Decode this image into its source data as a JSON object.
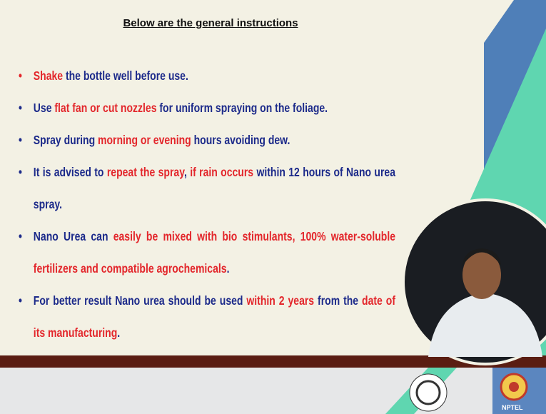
{
  "title": "Below are the general instructions",
  "bullets": [
    {
      "segments": [
        {
          "text": "Shake",
          "emphasis": true
        },
        {
          "text": " the bottle well before use.",
          "emphasis": false
        }
      ]
    },
    {
      "segments": [
        {
          "text": "Use ",
          "emphasis": false
        },
        {
          "text": "flat fan or cut nozzles",
          "emphasis": true
        },
        {
          "text": " for uniform spraying on the foliage.",
          "emphasis": false
        }
      ]
    },
    {
      "segments": [
        {
          "text": "Spray during ",
          "emphasis": false
        },
        {
          "text": "morning or evening",
          "emphasis": true
        },
        {
          "text": " hours avoiding dew.",
          "emphasis": false
        }
      ]
    },
    {
      "segments": [
        {
          "text": "It is advised to ",
          "emphasis": false
        },
        {
          "text": "repeat the spray",
          "emphasis": true
        },
        {
          "text": ", ",
          "emphasis": false
        },
        {
          "text": "if rain occurs",
          "emphasis": true
        },
        {
          "text": " within 12 hours of Nano urea spray.",
          "emphasis": false
        }
      ]
    },
    {
      "segments": [
        {
          "text": "Nano Urea can ",
          "emphasis": false
        },
        {
          "text": "easily be mixed with bio stimulants, 100% water-soluble fertilizers and compatible agrochemicals",
          "emphasis": true
        },
        {
          "text": ".",
          "emphasis": false
        }
      ]
    },
    {
      "segments": [
        {
          "text": "For better result Nano urea should be used ",
          "emphasis": false
        },
        {
          "text": "within 2 years",
          "emphasis": true
        },
        {
          "text": " from the ",
          "emphasis": false
        },
        {
          "text": "date of its manufacturing",
          "emphasis": true
        },
        {
          "text": ".",
          "emphasis": false
        }
      ]
    }
  ],
  "footer": {
    "logo_label": "NPTEL"
  }
}
